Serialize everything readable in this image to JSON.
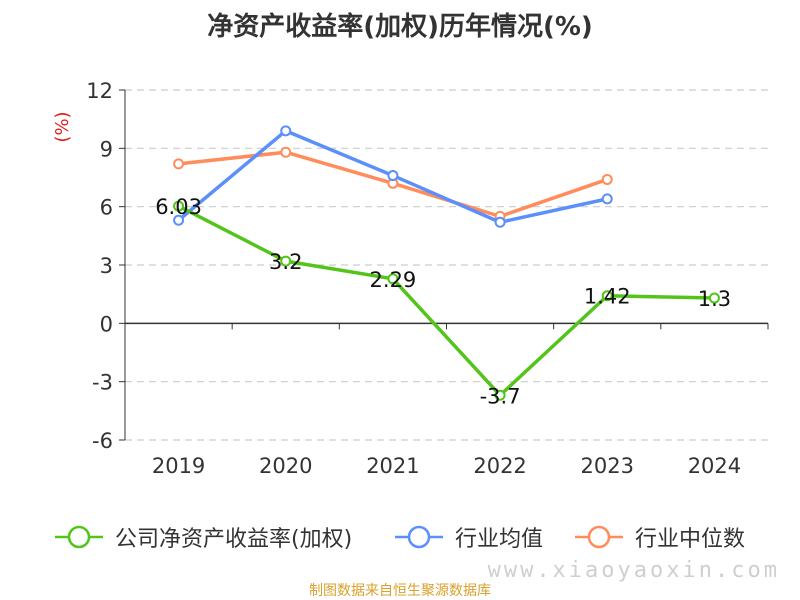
{
  "title": "净资产收益率(加权)历年情况(%)",
  "footer": "制图数据来自恒生聚源数据库",
  "watermark": "www.xiaoyaoxin.com",
  "chart_data": {
    "type": "line",
    "ylabel": "(%)",
    "ylim": [
      -6,
      12
    ],
    "yticks": [
      -6,
      -3,
      0,
      3,
      6,
      9,
      12
    ],
    "grid": true,
    "legend_position": "bottom",
    "categories": [
      "2019",
      "2020",
      "2021",
      "2022",
      "2023",
      "2024"
    ],
    "series": [
      {
        "name": "公司净资产收益率(加权)",
        "color": "#52c41a",
        "values": [
          6.03,
          3.2,
          2.29,
          -3.7,
          1.42,
          1.3
        ],
        "labels": [
          "6.03",
          "3.2",
          "2.29",
          "-3.7",
          "1.42",
          "1.3"
        ]
      },
      {
        "name": "行业均值",
        "color": "#5b8ff9",
        "values": [
          5.3,
          9.9,
          7.6,
          5.2,
          6.4,
          null
        ]
      },
      {
        "name": "行业中位数",
        "color": "#ff8c5a",
        "values": [
          8.2,
          8.8,
          7.2,
          5.5,
          7.4,
          null
        ]
      }
    ]
  }
}
